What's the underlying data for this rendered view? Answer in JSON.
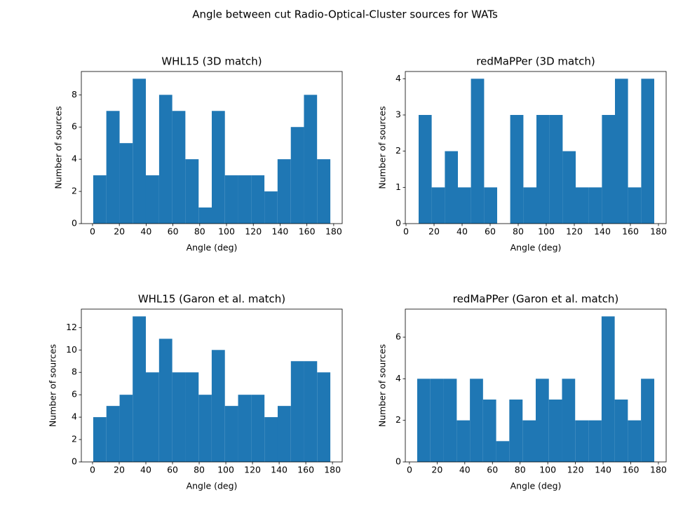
{
  "title": "Angle between cut Radio-Optical-Cluster sources for WATs",
  "chart_data": [
    {
      "type": "histogram",
      "title": "WHL15 (3D match)",
      "xlabel": "Angle (deg)",
      "ylabel": "Number of sources",
      "color": "#1f77b4",
      "bins": [
        0.5,
        10.3,
        20.2,
        30.0,
        39.8,
        49.7,
        59.5,
        69.3,
        79.2,
        89.0,
        98.8,
        108.6,
        118.5,
        128.3,
        138.1,
        148.0,
        157.8,
        167.6,
        177.5
      ],
      "values": [
        3,
        7,
        5,
        9,
        3,
        8,
        7,
        4,
        1,
        7,
        3,
        3,
        3,
        2,
        4,
        6,
        8,
        4
      ],
      "xlim": [
        -8.35,
        186.35
      ],
      "ylim": [
        0,
        9.45
      ],
      "xticks": [
        0,
        20,
        40,
        60,
        80,
        100,
        120,
        140,
        160,
        180
      ],
      "yticks": [
        0,
        2,
        4,
        6,
        8
      ]
    },
    {
      "type": "histogram",
      "title": "redMaPPer (3D match)",
      "xlabel": "Angle (deg)",
      "ylabel": "Number of sources",
      "color": "#1f77b4",
      "bins": [
        9.0,
        18.3,
        27.7,
        37.0,
        46.3,
        55.7,
        65.0,
        74.3,
        83.7,
        93.0,
        102.3,
        111.7,
        121.0,
        130.3,
        139.7,
        149.0,
        158.3,
        167.7,
        177.0
      ],
      "values": [
        3,
        1,
        2,
        1,
        4,
        1,
        0,
        3,
        1,
        3,
        3,
        2,
        1,
        1,
        3,
        4,
        1,
        4
      ],
      "xlim": [
        -0.5,
        185.5
      ],
      "ylim": [
        0,
        4.2
      ],
      "xticks": [
        0,
        20,
        40,
        60,
        80,
        100,
        120,
        140,
        160,
        180
      ],
      "yticks": [
        0,
        1,
        2,
        3,
        4
      ]
    },
    {
      "type": "histogram",
      "title": "WHL15 (Garon et al. match)",
      "xlabel": "Angle (deg)",
      "ylabel": "Number of sources",
      "color": "#1f77b4",
      "bins": [
        0.5,
        10.4,
        20.3,
        30.1,
        40.0,
        49.9,
        59.8,
        69.7,
        79.6,
        89.4,
        99.3,
        109.2,
        119.1,
        129.0,
        138.9,
        148.8,
        158.6,
        168.5,
        178.4
      ],
      "values": [
        4,
        5,
        6,
        13,
        8,
        11,
        8,
        8,
        6,
        10,
        5,
        6,
        6,
        4,
        5,
        9,
        9,
        8
      ],
      "xlim": [
        -8.4,
        187.3
      ],
      "ylim": [
        0,
        13.65
      ],
      "xticks": [
        0,
        20,
        40,
        60,
        80,
        100,
        120,
        140,
        160,
        180
      ],
      "yticks": [
        0,
        2,
        4,
        6,
        8,
        10,
        12
      ]
    },
    {
      "type": "histogram",
      "title": "redMaPPer (Garon et al. match)",
      "xlabel": "Angle (deg)",
      "ylabel": "Number of sources",
      "color": "#1f77b4",
      "bins": [
        5.6,
        15.1,
        24.6,
        34.2,
        43.7,
        53.2,
        62.7,
        72.2,
        81.8,
        91.3,
        100.8,
        110.3,
        119.8,
        129.4,
        138.9,
        148.4,
        157.9,
        167.4,
        177.0
      ],
      "values": [
        4,
        4,
        4,
        2,
        4,
        3,
        1,
        3,
        2,
        4,
        3,
        4,
        2,
        2,
        7,
        3,
        2,
        4
      ],
      "xlim": [
        -3.0,
        185.6
      ],
      "ylim": [
        0,
        7.35
      ],
      "xticks": [
        0,
        20,
        40,
        60,
        80,
        100,
        120,
        140,
        160,
        180
      ],
      "yticks": [
        0,
        2,
        4,
        6
      ]
    }
  ]
}
